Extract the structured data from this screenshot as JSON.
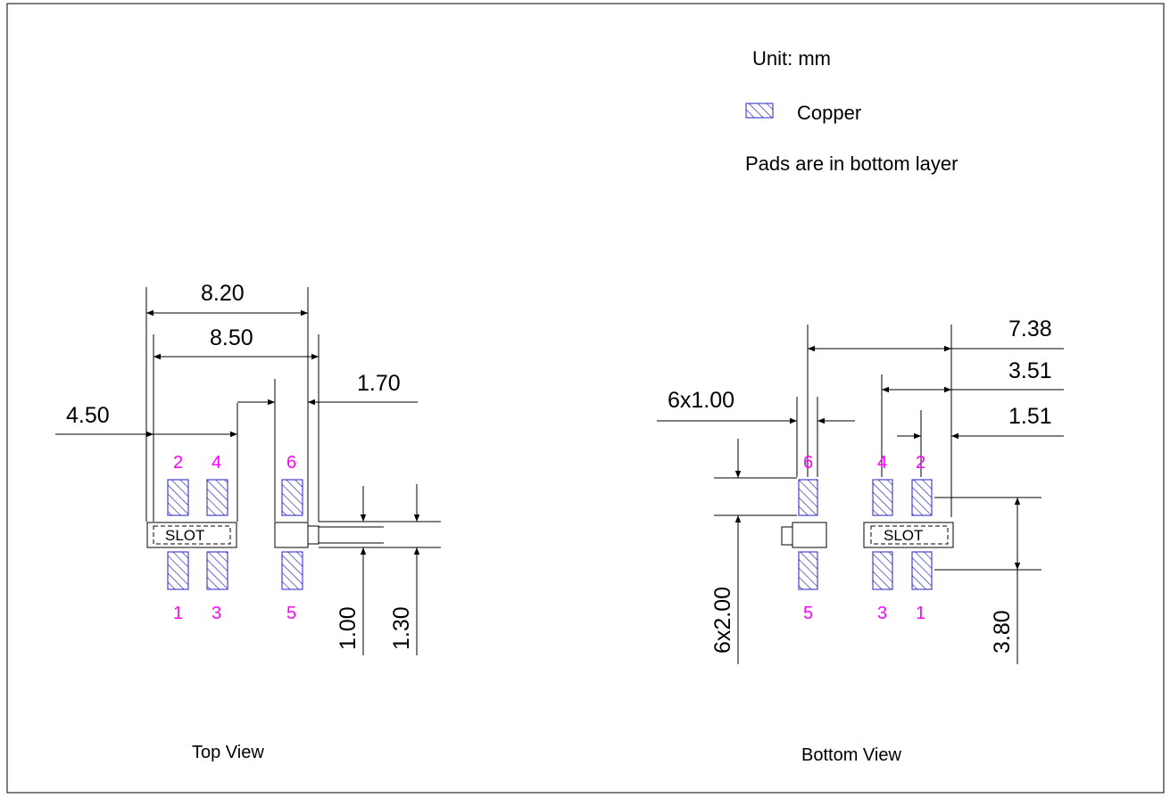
{
  "notes": {
    "unit": "Unit: mm",
    "legend_copper": "Copper",
    "layer_note": "Pads are in bottom layer"
  },
  "top_view": {
    "label": "Top View",
    "slot_label": "SLOT",
    "dimensions": {
      "d_820": "8.20",
      "d_850": "8.50",
      "d_170": "1.70",
      "d_450": "4.50",
      "d_100": "1.00",
      "d_130": "1.30"
    },
    "pins": {
      "p2": "2",
      "p4": "4",
      "p6": "6",
      "p1": "1",
      "p3": "3",
      "p5": "5"
    }
  },
  "bottom_view": {
    "label": "Bottom View",
    "slot_label": "SLOT",
    "dimensions": {
      "d_738": "7.38",
      "d_351": "3.51",
      "d_151": "1.51",
      "d_6x100": "6x1.00",
      "d_6x200": "6x2.00",
      "d_380": "3.80"
    },
    "pins": {
      "p6": "6",
      "p4": "4",
      "p2": "2",
      "p5": "5",
      "p3": "3",
      "p1": "1"
    }
  },
  "colors": {
    "copper_hatch": "#2020c0",
    "pin_labels": "#ff00ff",
    "lines": "#000000"
  }
}
